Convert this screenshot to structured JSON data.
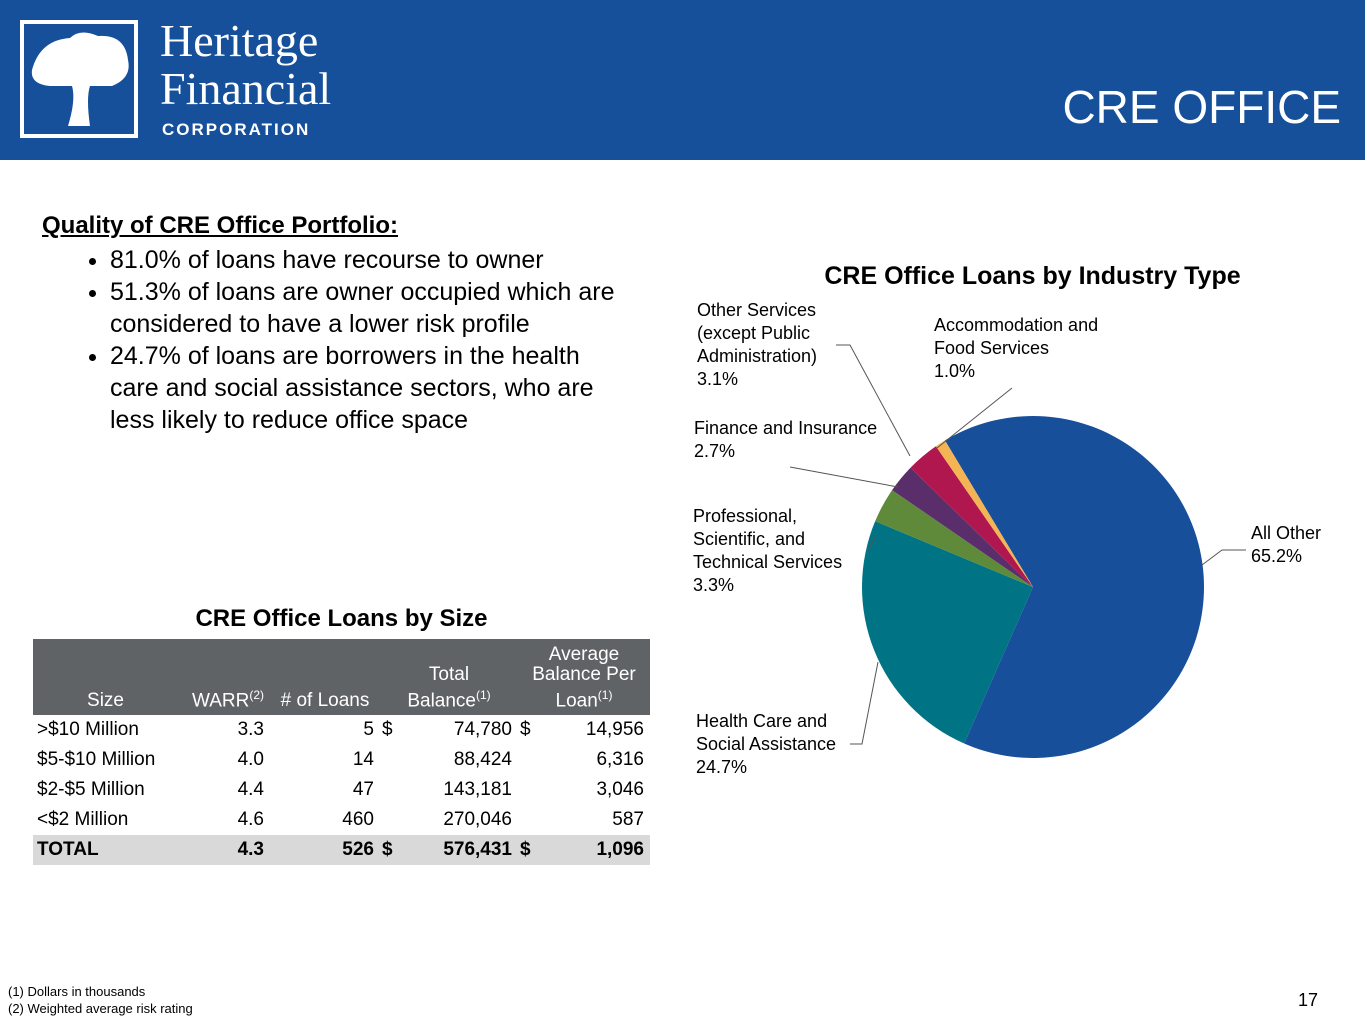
{
  "header": {
    "logo_line1": "Heritage",
    "logo_line2": "Financial",
    "logo_line3": "CORPORATION",
    "title": "CRE OFFICE"
  },
  "quality": {
    "heading": "Quality of CRE Office Portfolio:",
    "bullets": [
      "81.0% of loans have recourse to owner",
      "51.3% of loans are owner occupied which are considered to have a lower risk profile",
      "24.7% of loans are borrowers in the health care and social assistance sectors, who are less likely to reduce office space"
    ]
  },
  "table": {
    "title": "CRE Office Loans by Size",
    "header": [
      {
        "text": "Size"
      },
      {
        "text": "WARR",
        "sup": "(2)"
      },
      {
        "text": "# of Loans"
      },
      {
        "text": "Total Balance",
        "sup": "(1)"
      },
      {
        "text": "Average Balance Per Loan",
        "sup": "(1)"
      }
    ],
    "rows": [
      [
        ">$10 Million",
        "3.3",
        "5",
        "$",
        "74,780",
        "$",
        "14,956"
      ],
      [
        "$5-$10 Million",
        "4.0",
        "14",
        null,
        "88,424",
        null,
        "6,316"
      ],
      [
        "$2-$5 Million",
        "4.4",
        "47",
        null,
        "143,181",
        null,
        "3,046"
      ],
      [
        "<$2 Million",
        "4.6",
        "460",
        null,
        "270,046",
        null,
        "587"
      ],
      [
        "TOTAL",
        "4.3",
        "526",
        "$",
        "576,431",
        "$",
        "1,096"
      ]
    ]
  },
  "chart_data": {
    "type": "pie",
    "title": "CRE Office Loans by Industry Type",
    "categories": [
      "All Other",
      "Health Care and Social Assistance",
      "Professional, Scientific, and Technical Services",
      "Finance and Insurance",
      "Other Services (except Public Administration)",
      "Accommodation and Food Services"
    ],
    "values": [
      65.2,
      24.7,
      3.3,
      2.7,
      3.1,
      1.0
    ],
    "value_labels": [
      "65.2%",
      "24.7%",
      "3.3%",
      "2.7%",
      "3.1%",
      "1.0%"
    ],
    "colors": [
      "#174f9a",
      "#007385",
      "#5e8a3a",
      "#5a2d6b",
      "#b0174f",
      "#f5b454"
    ]
  },
  "footnotes": [
    "(1) Dollars in thousands",
    "(2) Weighted average risk rating"
  ],
  "page_number": "17"
}
